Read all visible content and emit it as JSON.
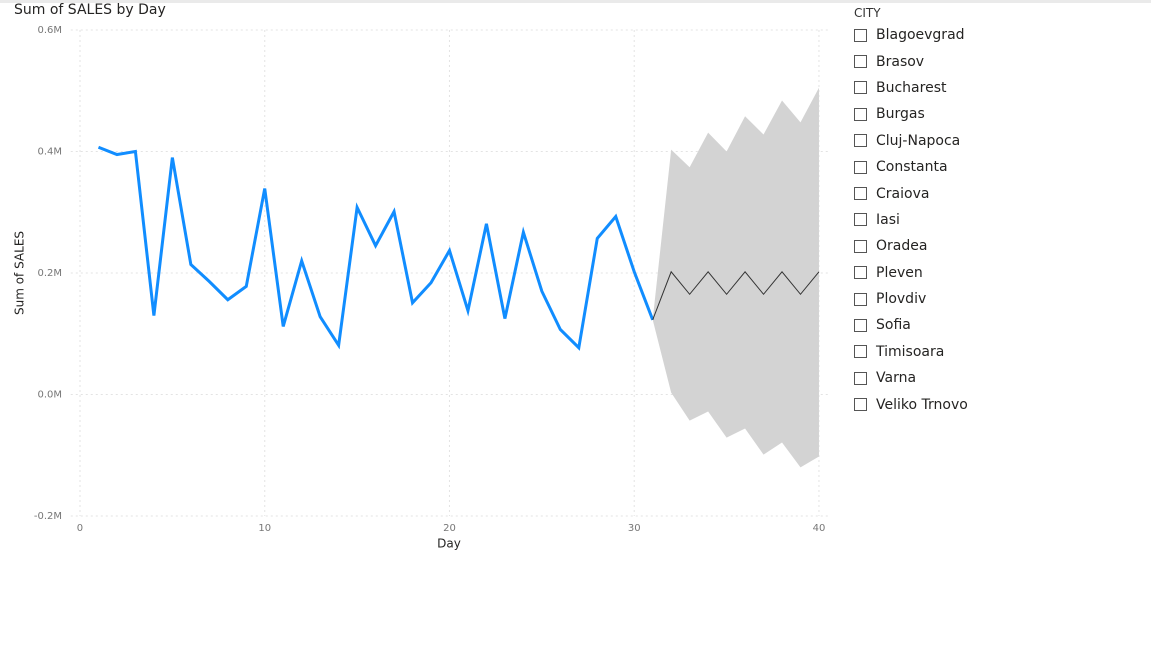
{
  "chart_data": {
    "type": "line",
    "title": "Sum of SALES by Day",
    "x_label": "Day",
    "y_label": "Sum of SALES",
    "x": [
      1,
      2,
      3,
      4,
      5,
      6,
      7,
      8,
      9,
      10,
      11,
      12,
      13,
      14,
      15,
      16,
      17,
      18,
      19,
      20,
      21,
      22,
      23,
      24,
      25,
      26,
      27,
      28,
      29,
      30,
      31,
      32,
      33,
      34,
      35,
      36,
      37,
      38,
      39,
      40
    ],
    "series": [
      {
        "color": "#118dff",
        "values": [
          0.407,
          0.395,
          0.4,
          0.13,
          0.39,
          0.214,
          0.186,
          0.156,
          0.178,
          0.339,
          0.112,
          0.22,
          0.128,
          0.081,
          0.308,
          0.245,
          0.301,
          0.151,
          0.184,
          0.237,
          0.138,
          0.281,
          0.125,
          0.267,
          0.17,
          0.107,
          0.077,
          0.257,
          0.293,
          0.202,
          0.123,
          null,
          null,
          null,
          null,
          null,
          null,
          null,
          null,
          null
        ]
      },
      {
        "color": "#333333",
        "values": [
          null,
          null,
          null,
          null,
          null,
          null,
          null,
          null,
          null,
          null,
          null,
          null,
          null,
          null,
          null,
          null,
          null,
          null,
          null,
          null,
          null,
          null,
          null,
          null,
          null,
          null,
          null,
          null,
          null,
          null,
          0.123,
          0.202,
          0.165,
          0.202,
          0.165,
          0.202,
          0.165,
          0.202,
          0.165,
          0.202
        ]
      }
    ],
    "band": {
      "color": "#d3d3d3",
      "upper": [
        null,
        null,
        null,
        null,
        null,
        null,
        null,
        null,
        null,
        null,
        null,
        null,
        null,
        null,
        null,
        null,
        null,
        null,
        null,
        null,
        null,
        null,
        null,
        null,
        null,
        null,
        null,
        null,
        null,
        null,
        0.123,
        0.403,
        0.374,
        0.431,
        0.4,
        0.458,
        0.428,
        0.484,
        0.448,
        0.505
      ],
      "lower": [
        null,
        null,
        null,
        null,
        null,
        null,
        null,
        null,
        null,
        null,
        null,
        null,
        null,
        null,
        null,
        null,
        null,
        null,
        null,
        null,
        null,
        null,
        null,
        null,
        null,
        null,
        null,
        null,
        null,
        null,
        0.123,
        0.003,
        -0.043,
        -0.028,
        -0.071,
        -0.056,
        -0.099,
        -0.079,
        -0.12,
        -0.102
      ]
    },
    "xlim": [
      -0.5,
      40.5
    ],
    "xticks": [
      0,
      10,
      20,
      30,
      40
    ],
    "ylim": [
      -0.2,
      0.6
    ],
    "yticks": [
      {
        "value": -0.2,
        "label": "-0.2M"
      },
      {
        "value": 0,
        "label": "0.0M"
      },
      {
        "value": 0.2,
        "label": "0.2M"
      },
      {
        "value": 0.4,
        "label": "0.4M"
      },
      {
        "value": 0.6,
        "label": "0.6M"
      }
    ],
    "grid": true
  },
  "slicer": {
    "title": "CITY",
    "items": [
      "Blagoevgrad",
      "Brasov",
      "Bucharest",
      "Burgas",
      "Cluj-Napoca",
      "Constanta",
      "Craiova",
      "Iasi",
      "Oradea",
      "Pleven",
      "Plovdiv",
      "Sofia",
      "Timisoara",
      "Varna",
      "Veliko Trnovo"
    ]
  }
}
